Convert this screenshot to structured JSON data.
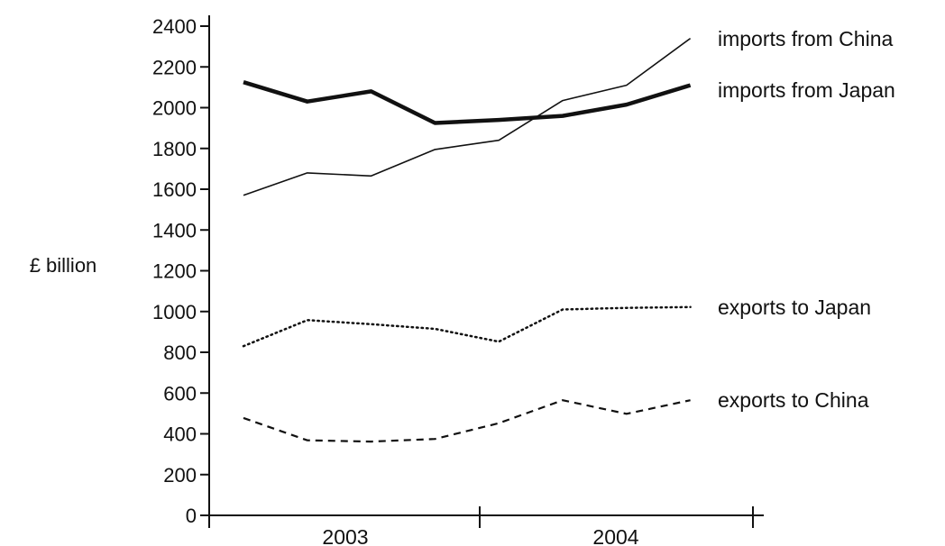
{
  "chart_data": {
    "type": "line",
    "title": "",
    "ylabel": "£ billion",
    "xlabel": "",
    "ylim": [
      0,
      2400
    ],
    "yticks": [
      0,
      200,
      400,
      600,
      800,
      1000,
      1200,
      1400,
      1600,
      1800,
      2000,
      2200,
      2400
    ],
    "x_periods": [
      "2003",
      "2003",
      "2003",
      "2003",
      "2004",
      "2004",
      "2004",
      "2004"
    ],
    "year_groups": [
      "2003",
      "2004"
    ],
    "grid": false,
    "legend": "labels at line ends (right)",
    "series": [
      {
        "name": "imports from China",
        "style": "thin-solid",
        "color": "#111111",
        "values": [
          1570,
          1680,
          1665,
          1795,
          1840,
          2035,
          2110,
          2340
        ]
      },
      {
        "name": "imports from Japan",
        "style": "thick-solid",
        "color": "#111111",
        "values": [
          2125,
          2030,
          2080,
          1925,
          1940,
          1960,
          2015,
          2110
        ]
      },
      {
        "name": "exports to Japan",
        "style": "dotted",
        "color": "#111111",
        "values": [
          830,
          958,
          938,
          915,
          852,
          1010,
          1018,
          1022
        ]
      },
      {
        "name": "exports to China",
        "style": "dashed",
        "color": "#111111",
        "values": [
          478,
          368,
          362,
          375,
          452,
          565,
          498,
          565
        ]
      }
    ]
  }
}
